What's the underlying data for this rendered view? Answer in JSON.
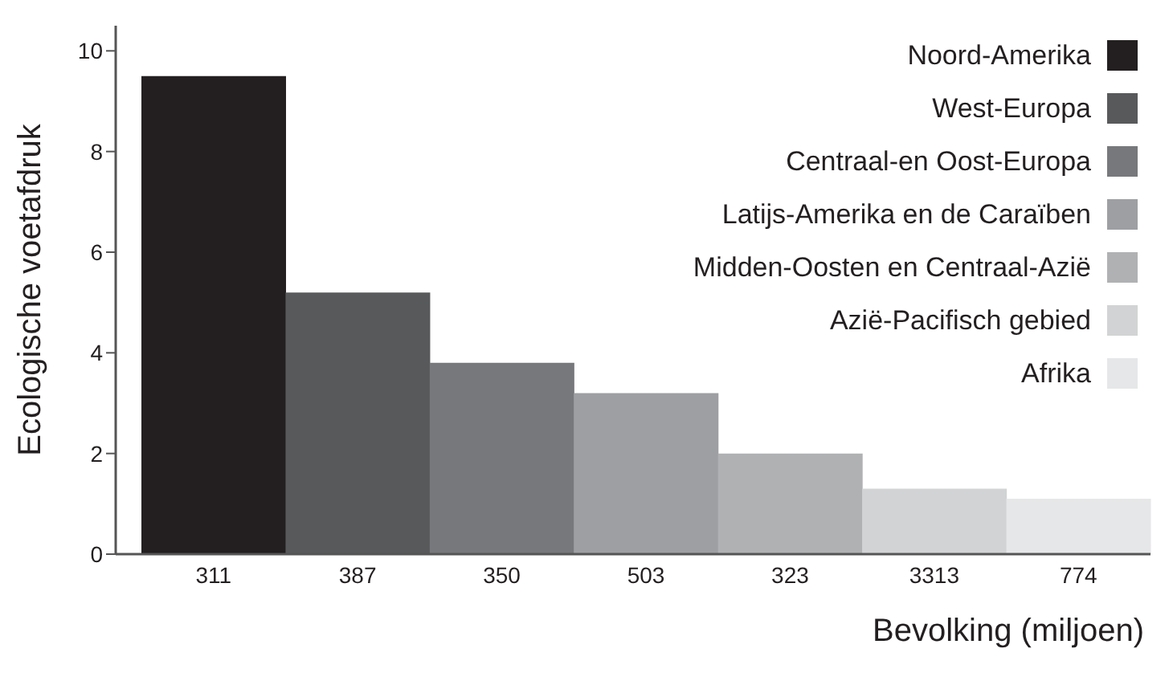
{
  "chart_data": {
    "type": "bar",
    "xlabel": "Bevolking (miljoen)",
    "ylabel": "Ecologische voetafdruk",
    "categories": [
      "311",
      "387",
      "350",
      "503",
      "323",
      "3313",
      "774"
    ],
    "stacked": true,
    "legend": "top right",
    "grid": false,
    "ylim": [
      0,
      10.5
    ],
    "yticks": [
      0,
      2,
      4,
      6,
      8,
      10
    ],
    "series": [
      {
        "name": "Noord-Amerika",
        "color": "#231f20",
        "values": [
          9.5,
          null,
          null,
          null,
          null,
          null,
          null
        ]
      },
      {
        "name": "West-Europa",
        "color": "#58595b",
        "values": [
          null,
          5.2,
          null,
          null,
          null,
          null,
          null
        ]
      },
      {
        "name": "Centraal-en Oost-Europa",
        "color": "#77787b",
        "values": [
          null,
          null,
          3.8,
          null,
          null,
          null,
          null
        ]
      },
      {
        "name": "Latijs-Amerika en de Caraïben",
        "color": "#9d9fa2",
        "values": [
          null,
          null,
          null,
          3.2,
          null,
          null,
          null
        ]
      },
      {
        "name": "Midden-Oosten en Centraal-Azië",
        "color": "#b0b1b3",
        "values": [
          null,
          null,
          null,
          null,
          2.0,
          null,
          null
        ]
      },
      {
        "name": "Azië-Pacifisch gebied",
        "color": "#d1d3d4",
        "values": [
          null,
          null,
          null,
          null,
          null,
          1.3,
          null
        ]
      },
      {
        "name": "Afrika",
        "color": "#e6e7e8",
        "values": [
          null,
          null,
          null,
          null,
          null,
          null,
          1.1
        ]
      }
    ]
  }
}
